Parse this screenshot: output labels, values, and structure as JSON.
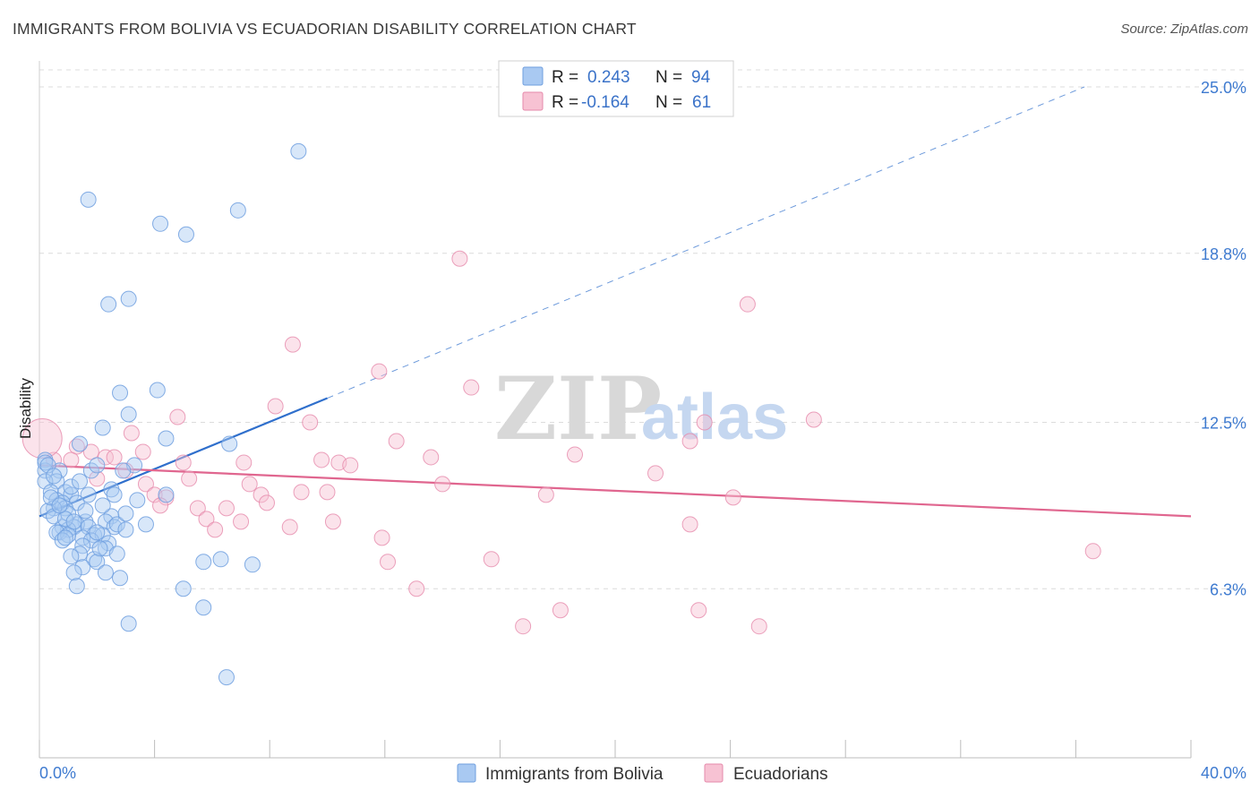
{
  "header": {
    "title": "IMMIGRANTS FROM BOLIVIA VS ECUADORIAN DISABILITY CORRELATION CHART",
    "source": "Source: ZipAtlas.com"
  },
  "watermark": {
    "part1": "ZIP",
    "part2": "atlas"
  },
  "legend_top": {
    "rows": [
      {
        "r_label": "R =",
        "r_value": "0.243",
        "n_label": "N =",
        "n_value": "94"
      },
      {
        "r_label": "R =",
        "r_value": "-0.164",
        "n_label": "N =",
        "n_value": "61"
      }
    ]
  },
  "legend_bottom": [
    {
      "label": "Immigrants from Bolivia"
    },
    {
      "label": "Ecuadorians"
    }
  ],
  "colors": {
    "bolivia_fill": "#a9c9f2",
    "bolivia_stroke": "#6f9fdf",
    "bolivia_line": "#2f6fcc",
    "ecuador_fill": "#f7c2d3",
    "ecuador_stroke": "#e68aab",
    "ecuador_line": "#e0668f",
    "grid": "#dcdcdc",
    "axis_text": "#3f7bd0"
  },
  "chart_data": {
    "type": "scatter",
    "title": "IMMIGRANTS FROM BOLIVIA VS ECUADORIAN DISABILITY CORRELATION CHART",
    "xlabel": "",
    "ylabel": "Disability",
    "xlim": [
      0,
      40
    ],
    "ylim": [
      0,
      25.9
    ],
    "x_tick_labels": [
      "0.0%",
      "40.0%"
    ],
    "y_ticks": [
      6.3,
      12.5,
      18.8,
      25.0
    ],
    "y_tick_labels": [
      "6.3%",
      "12.5%",
      "18.8%",
      "25.0%"
    ],
    "grid": true,
    "legend_position": "top-center",
    "series": [
      {
        "name": "Immigrants from Bolivia",
        "r": 0.243,
        "n": 94,
        "trend": {
          "x0": 0.0,
          "y0": 9.0,
          "x1": 10.0,
          "y1": 13.4,
          "dashed_to_x": 36.3,
          "dashed_to_y": 25.0
        },
        "points": [
          [
            9.0,
            22.6
          ],
          [
            1.7,
            20.8
          ],
          [
            6.9,
            20.4
          ],
          [
            4.2,
            19.9
          ],
          [
            5.1,
            19.5
          ],
          [
            3.1,
            17.1
          ],
          [
            2.4,
            16.9
          ],
          [
            2.8,
            13.6
          ],
          [
            4.1,
            13.7
          ],
          [
            3.1,
            12.8
          ],
          [
            2.2,
            12.3
          ],
          [
            4.4,
            11.9
          ],
          [
            6.6,
            11.7
          ],
          [
            1.4,
            11.7
          ],
          [
            0.2,
            11.1
          ],
          [
            0.7,
            10.7
          ],
          [
            1.8,
            10.7
          ],
          [
            3.3,
            10.9
          ],
          [
            2.0,
            10.9
          ],
          [
            0.2,
            10.7
          ],
          [
            0.6,
            10.3
          ],
          [
            0.2,
            10.3
          ],
          [
            2.9,
            10.7
          ],
          [
            2.5,
            10.0
          ],
          [
            0.4,
            9.9
          ],
          [
            0.9,
            9.9
          ],
          [
            1.1,
            9.8
          ],
          [
            1.7,
            9.8
          ],
          [
            2.6,
            9.8
          ],
          [
            0.6,
            9.6
          ],
          [
            0.8,
            9.5
          ],
          [
            3.4,
            9.6
          ],
          [
            4.4,
            9.8
          ],
          [
            1.3,
            9.5
          ],
          [
            0.9,
            9.3
          ],
          [
            0.5,
            9.3
          ],
          [
            2.5,
            9.0
          ],
          [
            2.3,
            8.8
          ],
          [
            2.6,
            8.6
          ],
          [
            1.6,
            8.8
          ],
          [
            1.3,
            8.7
          ],
          [
            2.7,
            8.7
          ],
          [
            1.2,
            8.6
          ],
          [
            1.7,
            8.6
          ],
          [
            0.8,
            8.6
          ],
          [
            1.0,
            8.5
          ],
          [
            3.0,
            8.5
          ],
          [
            0.7,
            8.4
          ],
          [
            0.6,
            8.4
          ],
          [
            1.9,
            8.3
          ],
          [
            2.2,
            8.3
          ],
          [
            1.0,
            8.3
          ],
          [
            3.7,
            8.7
          ],
          [
            1.5,
            8.2
          ],
          [
            2.4,
            8.0
          ],
          [
            1.8,
            8.1
          ],
          [
            1.5,
            7.9
          ],
          [
            2.3,
            7.8
          ],
          [
            1.4,
            7.6
          ],
          [
            2.7,
            7.6
          ],
          [
            1.1,
            7.5
          ],
          [
            5.7,
            7.3
          ],
          [
            6.3,
            7.4
          ],
          [
            7.4,
            7.2
          ],
          [
            1.9,
            7.4
          ],
          [
            2.0,
            7.3
          ],
          [
            1.5,
            7.1
          ],
          [
            1.2,
            6.9
          ],
          [
            2.3,
            6.9
          ],
          [
            2.8,
            6.7
          ],
          [
            1.3,
            6.4
          ],
          [
            5.0,
            6.3
          ],
          [
            5.7,
            5.6
          ],
          [
            3.1,
            5.0
          ],
          [
            6.5,
            3.0
          ],
          [
            0.2,
            11.0
          ],
          [
            0.3,
            9.2
          ],
          [
            0.5,
            9.0
          ],
          [
            1.0,
            9.1
          ],
          [
            1.6,
            9.2
          ],
          [
            2.0,
            8.4
          ],
          [
            0.9,
            8.9
          ],
          [
            0.4,
            9.7
          ],
          [
            1.1,
            10.1
          ],
          [
            2.2,
            9.4
          ],
          [
            0.3,
            10.9
          ],
          [
            0.7,
            9.4
          ],
          [
            1.4,
            10.3
          ],
          [
            0.8,
            8.1
          ],
          [
            3.0,
            9.1
          ],
          [
            1.2,
            8.8
          ],
          [
            0.5,
            10.5
          ],
          [
            2.1,
            7.8
          ],
          [
            0.9,
            8.2
          ]
        ]
      },
      {
        "name": "Ecuadorians",
        "r": -0.164,
        "n": 61,
        "trend": {
          "x0": 0.0,
          "y0": 10.9,
          "x1": 40.0,
          "y1": 9.0
        },
        "points": [
          [
            14.6,
            18.6
          ],
          [
            24.6,
            16.9
          ],
          [
            8.8,
            15.4
          ],
          [
            11.8,
            14.4
          ],
          [
            15.0,
            13.8
          ],
          [
            8.2,
            13.1
          ],
          [
            4.8,
            12.7
          ],
          [
            9.4,
            12.5
          ],
          [
            23.1,
            12.5
          ],
          [
            26.9,
            12.6
          ],
          [
            3.2,
            12.1
          ],
          [
            12.4,
            11.8
          ],
          [
            22.6,
            11.8
          ],
          [
            13.6,
            11.2
          ],
          [
            18.6,
            11.3
          ],
          [
            1.3,
            11.6
          ],
          [
            1.8,
            11.4
          ],
          [
            3.6,
            11.4
          ],
          [
            2.3,
            11.2
          ],
          [
            2.6,
            11.2
          ],
          [
            0.5,
            11.1
          ],
          [
            1.1,
            11.1
          ],
          [
            5.0,
            11.0
          ],
          [
            7.1,
            11.0
          ],
          [
            9.8,
            11.1
          ],
          [
            10.4,
            11.0
          ],
          [
            10.8,
            10.9
          ],
          [
            3.0,
            10.7
          ],
          [
            2.0,
            10.4
          ],
          [
            21.4,
            10.6
          ],
          [
            5.2,
            10.4
          ],
          [
            7.3,
            10.2
          ],
          [
            14.0,
            10.2
          ],
          [
            3.7,
            10.2
          ],
          [
            4.0,
            9.8
          ],
          [
            7.7,
            9.8
          ],
          [
            9.1,
            9.9
          ],
          [
            10.0,
            9.9
          ],
          [
            17.6,
            9.8
          ],
          [
            24.1,
            9.7
          ],
          [
            4.4,
            9.7
          ],
          [
            4.2,
            9.4
          ],
          [
            5.5,
            9.3
          ],
          [
            6.5,
            9.3
          ],
          [
            7.9,
            9.5
          ],
          [
            5.8,
            8.9
          ],
          [
            7.0,
            8.8
          ],
          [
            8.7,
            8.6
          ],
          [
            10.2,
            8.8
          ],
          [
            22.6,
            8.7
          ],
          [
            6.1,
            8.5
          ],
          [
            11.9,
            8.2
          ],
          [
            36.6,
            7.7
          ],
          [
            15.7,
            7.4
          ],
          [
            12.1,
            7.3
          ],
          [
            13.1,
            6.3
          ],
          [
            18.1,
            5.5
          ],
          [
            22.9,
            5.5
          ],
          [
            16.8,
            4.9
          ],
          [
            25.0,
            4.9
          ],
          [
            0.1,
            11.9
          ]
        ]
      }
    ]
  }
}
